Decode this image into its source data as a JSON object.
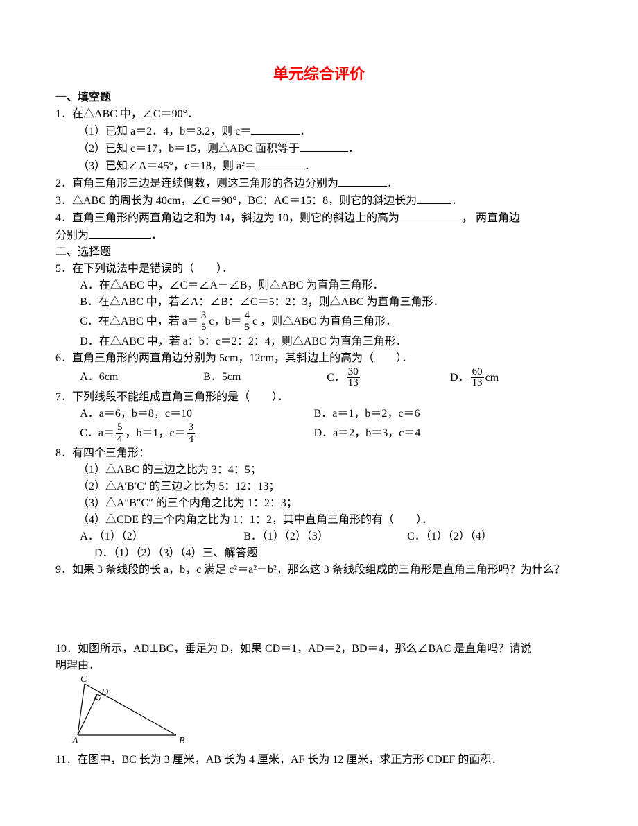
{
  "title": "单元综合评价",
  "sec1": "一、填空题",
  "sec2": "二、选择题",
  "sec3": "三、解答题",
  "q1": {
    "stem": "1．在△ABC 中，∠C＝90°．",
    "a": "（1）已知 a＝2．4，b＝3.2，则 c＝",
    "a_end": "．",
    "b": "（2）已知 c＝17，b＝15，则△ABC 面积等于",
    "b_end": "．",
    "c": "（3）已知∠A＝45°，c＝18，则 a²＝",
    "c_end": "．"
  },
  "q2": {
    "stem": "2．直角三角形三边是连续偶数，则这三角形的各边分别为",
    "end": "．"
  },
  "q3": {
    "stem": "3．△ABC 的周长为 40cm，∠C＝90°，BC：AC＝15：8，则它的斜边长为",
    "end": "．"
  },
  "q4": {
    "stem_a": "4．直角三角形的两直角边之和为 14，斜边为 10，则它的斜边上的高为",
    "mid": "， 两直角边",
    "line2a": "分别为",
    "end": "．"
  },
  "q5": {
    "stem": "5．在下列说法中是错误的（　　）．",
    "a": "A．在△ABC 中，∠C＝∠A－∠B，则△ABC 为直角三角形．",
    "b": "B．在△ABC 中，若∠A：∠B：∠C＝5：2：3，则△ABC 为直角三角形．",
    "c_pre": "C．在△ABC 中，若 a＝",
    "c_mid": "c，b＝",
    "c_post": "c ，则△ABC 为直角三角形．",
    "d": "D．在△ABC 中，若 a：b：c＝2：2：4，则△ABC 为直角三角形．",
    "f1n": "3",
    "f1d": "5",
    "f2n": "4",
    "f2d": "5"
  },
  "q6": {
    "stem": "6．直角三角形的两直角边分别为 5cm，12cm，其斜边上的高为（　　）．",
    "a": "A．6cm",
    "b": "B．5cm",
    "c_pre": "C．",
    "cn": "30",
    "cd": "13",
    "d_pre": "D．",
    "dn": "60",
    "dd": "13",
    "d_unit": "cm"
  },
  "q7": {
    "stem": "7．下列线段不能组成直角三角形的是（　　）．",
    "a": "A．a＝6，b＝8，c＝10",
    "b": "B．a＝1，b＝2，c＝6",
    "c_pre": "C．a＝",
    "c1n": "5",
    "c1d": "4",
    "c_mid": "，b＝1，c＝",
    "c2n": "3",
    "c2d": "4",
    "d": "D．a＝2，b＝3，c＝4"
  },
  "q8": {
    "stem": "8．有四个三角形：",
    "l1": "（1）△ABC 的三边之比为 3：4：5；",
    "l2": "（2）△A′B′C′ 的三边之比为 5：12：13；",
    "l3": "（3）△A″B″C″ 的三个内角之比为 1：2：3；",
    "l4": "（4）△CDE 的三个内角之比为 1：1：2，其中直角三角形的有（　　）．",
    "a": "A．（1）（2）",
    "b": "B．（1）（2）（3）",
    "c": "C．（1）（2）（4）",
    "d": "D．（1）（2）（3）（4）"
  },
  "q9": "9．如果 3 条线段的长 a，b，c 满足 c²＝a²－b²，那么这 3 条线段组成的三角形是直角三角形吗？为什么？",
  "q10": {
    "stem": "10．如图所示，AD⊥BC，垂足为 D，如果 CD＝1，AD＝2，BD＝4，那么∠BAC 是直角吗？请说",
    "stem2": "明理由．",
    "labels": {
      "A": "A",
      "B": "B",
      "C": "C",
      "D": "D"
    },
    "stroke": "#000000",
    "stroke_width": 1.2
  },
  "q11": "11．在图中，BC 长为 3 厘米，AB 长为 4 厘米，AF 长为 12 厘米，求正方形 CDEF 的面积．"
}
